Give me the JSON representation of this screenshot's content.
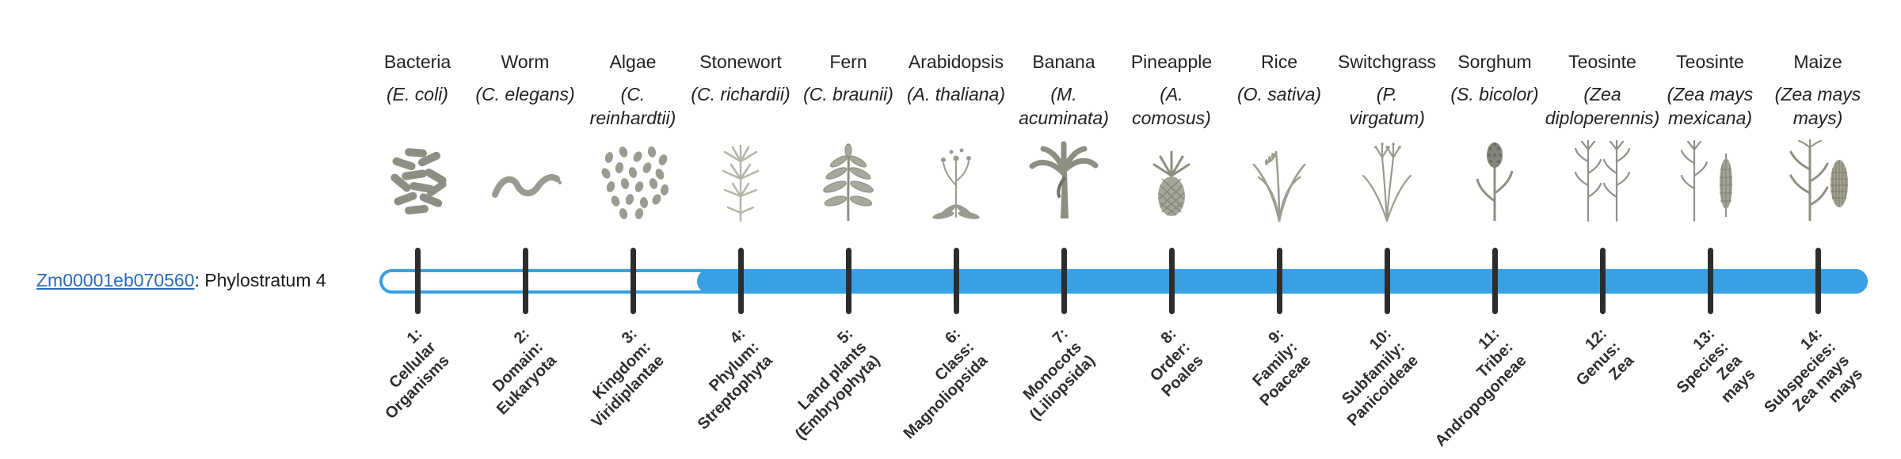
{
  "gene": {
    "id": "Zm00001eb070560",
    "suffix": ": Phylostratum 4",
    "phylostratum": 4
  },
  "bar": {
    "filled_from_stratum": 4,
    "total_strata": 14
  },
  "colors": {
    "bar_blue": "#3aa0e4",
    "tick": "#2d2d2d",
    "link": "#2a6bbf",
    "art_gray": "#95958b",
    "text": "#222222"
  },
  "columns": [
    {
      "stratum": 1,
      "common": "Bacteria",
      "scientific": "(E. coli)",
      "icon": "bacteria-icon",
      "bottom_label": "1:\nCellular\nOrganisms"
    },
    {
      "stratum": 2,
      "common": "Worm",
      "scientific": "(C. elegans)",
      "icon": "worm-icon",
      "bottom_label": "2:\nDomain:\nEukaryota"
    },
    {
      "stratum": 3,
      "common": "Algae",
      "scientific": "(C.\nreinhardtii)",
      "icon": "algae-icon",
      "bottom_label": "3:\nKingdom:\nViridiplantae"
    },
    {
      "stratum": 4,
      "common": "Stonewort",
      "scientific": "(C. richardii)",
      "icon": "stonewort-icon",
      "bottom_label": "4:\nPhylum:\nStreptophyta"
    },
    {
      "stratum": 5,
      "common": "Fern",
      "scientific": "(C. braunii)",
      "icon": "fern-icon",
      "bottom_label": "5:\nLand plants\n(Embryophyta)"
    },
    {
      "stratum": 6,
      "common": "Arabidopsis",
      "scientific": "(A. thaliana)",
      "icon": "arabidopsis-icon",
      "bottom_label": "6:\nClass:\nMagnoliopsida"
    },
    {
      "stratum": 7,
      "common": "Banana",
      "scientific": "(M.\nacuminata)",
      "icon": "banana-icon",
      "bottom_label": "7:\nMonocots\n(Liliopsida)"
    },
    {
      "stratum": 8,
      "common": "Pineapple",
      "scientific": "(A.\ncomosus)",
      "icon": "pineapple-icon",
      "bottom_label": "8:\nOrder:\nPoales"
    },
    {
      "stratum": 9,
      "common": "Rice",
      "scientific": "(O. sativa)",
      "icon": "rice-icon",
      "bottom_label": "9:\nFamily:\nPoaceae"
    },
    {
      "stratum": 10,
      "common": "Switchgrass",
      "scientific": "(P.\nvirgatum)",
      "icon": "switchgrass-icon",
      "bottom_label": "10:\nSubfamily:\nPanicoideae"
    },
    {
      "stratum": 11,
      "common": "Sorghum",
      "scientific": "(S. bicolor)",
      "icon": "sorghum-icon",
      "bottom_label": "11:\nTribe:\nAndropogoneae"
    },
    {
      "stratum": 12,
      "common": "Teosinte",
      "scientific": "(Zea\ndiploperennis)",
      "icon": "teosinte-diploperennis-icon",
      "bottom_label": "12:\nGenus:\nZea"
    },
    {
      "stratum": 13,
      "common": "Teosinte",
      "scientific": "(Zea mays\nmexicana)",
      "icon": "teosinte-mexicana-icon",
      "bottom_label": "13:\nSpecies:\nZea\nmays"
    },
    {
      "stratum": 14,
      "common": "Maize",
      "scientific": "(Zea mays\nmays)",
      "icon": "maize-icon",
      "bottom_label": "14:\nSubspecies:\nZea mays\nmays"
    }
  ]
}
